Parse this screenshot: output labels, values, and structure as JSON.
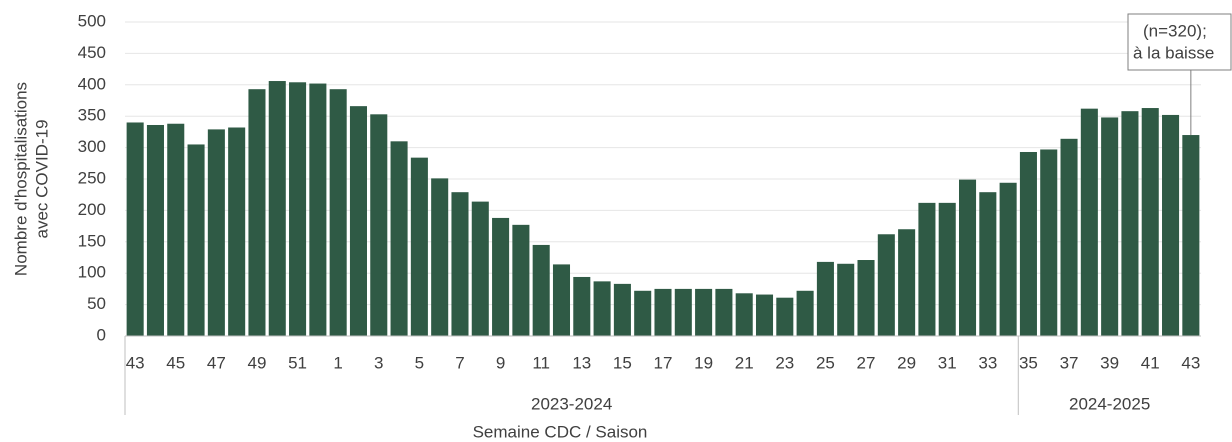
{
  "chart_data": {
    "type": "bar",
    "y_label": [
      "Nombre d'hospitalisations",
      "avec COVID-19"
    ],
    "x_label": "Semaine CDC / Saison",
    "categories": [
      "43",
      null,
      "45",
      null,
      "47",
      null,
      "49",
      null,
      "51",
      null,
      "1",
      null,
      "3",
      null,
      "5",
      null,
      "7",
      null,
      "9",
      null,
      "11",
      null,
      "13",
      null,
      "15",
      null,
      "17",
      null,
      "19",
      null,
      "21",
      null,
      "23",
      null,
      "25",
      null,
      "27",
      null,
      "29",
      null,
      "31",
      null,
      "33",
      null,
      "35",
      null,
      "37",
      null,
      "39",
      null,
      "41",
      null,
      "43"
    ],
    "values": [
      340,
      336,
      338,
      305,
      329,
      332,
      393,
      406,
      404,
      402,
      393,
      366,
      353,
      310,
      284,
      251,
      229,
      214,
      188,
      177,
      145,
      114,
      94,
      87,
      83,
      72,
      75,
      75,
      75,
      75,
      68,
      66,
      61,
      72,
      118,
      115,
      121,
      162,
      170,
      212,
      212,
      249,
      229,
      244,
      293,
      297,
      314,
      362,
      348,
      358,
      363,
      352,
      320
    ],
    "groups": [
      {
        "label": "2023-2024",
        "size": 44
      },
      {
        "label": "2024-2025",
        "size": 9
      }
    ],
    "annotation": [
      "(n=320);",
      "à la baisse"
    ],
    "color": "#2f5a45",
    "ylim": [
      0,
      500
    ],
    "yticks": [
      0,
      50,
      100,
      150,
      200,
      250,
      300,
      350,
      400,
      450,
      500
    ],
    "grid": true
  }
}
